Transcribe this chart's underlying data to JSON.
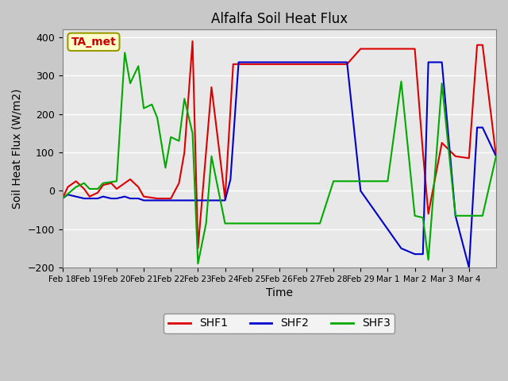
{
  "title": "Alfalfa Soil Heat Flux",
  "xlabel": "Time",
  "ylabel": "Soil Heat Flux (W/m2)",
  "ylim": [
    -200,
    420
  ],
  "annotation": "TA_met",
  "series": {
    "SHF1": {
      "color": "#dd0000",
      "x": [
        0,
        0.2,
        0.5,
        0.8,
        1.0,
        1.3,
        1.5,
        1.8,
        2.0,
        2.3,
        2.5,
        2.8,
        3.0,
        3.5,
        4.0,
        4.3,
        4.5,
        4.8,
        5.0,
        5.5,
        6.0,
        6.3,
        6.5,
        7.0,
        7.5,
        8.0,
        8.5,
        9.0,
        9.5,
        10.0,
        10.5,
        11.0,
        11.5,
        12.0,
        12.5,
        13.0,
        13.3,
        13.5,
        14.0,
        14.5,
        15.0,
        15.3,
        15.5,
        16.0
      ],
      "y": [
        -20,
        10,
        25,
        5,
        -15,
        -5,
        15,
        20,
        5,
        20,
        30,
        10,
        -15,
        -20,
        -20,
        20,
        100,
        390,
        -150,
        270,
        -20,
        330,
        330,
        330,
        330,
        330,
        330,
        330,
        330,
        330,
        330,
        370,
        370,
        370,
        370,
        370,
        100,
        -60,
        125,
        90,
        85,
        380,
        380,
        90
      ]
    },
    "SHF2": {
      "color": "#0000cc",
      "x": [
        0,
        0.2,
        0.5,
        0.8,
        1.0,
        1.3,
        1.5,
        1.8,
        2.0,
        2.3,
        2.5,
        2.8,
        3.0,
        3.5,
        4.0,
        4.5,
        5.0,
        5.5,
        6.0,
        6.2,
        6.5,
        7.0,
        7.5,
        8.0,
        8.5,
        9.0,
        9.5,
        10.0,
        10.5,
        11.0,
        11.5,
        12.0,
        12.5,
        13.0,
        13.3,
        13.5,
        14.0,
        14.5,
        15.0,
        15.3,
        15.5,
        16.0
      ],
      "y": [
        -20,
        -10,
        -15,
        -20,
        -20,
        -20,
        -15,
        -20,
        -20,
        -15,
        -20,
        -20,
        -25,
        -25,
        -25,
        -25,
        -25,
        -25,
        -25,
        30,
        335,
        335,
        335,
        335,
        335,
        335,
        335,
        335,
        335,
        0,
        -50,
        -100,
        -150,
        -165,
        -165,
        335,
        335,
        -65,
        -200,
        165,
        165,
        90
      ]
    },
    "SHF3": {
      "color": "#00aa00",
      "x": [
        0,
        0.5,
        0.8,
        1.0,
        1.3,
        1.5,
        2.0,
        2.3,
        2.5,
        2.8,
        3.0,
        3.3,
        3.5,
        3.8,
        4.0,
        4.3,
        4.5,
        4.8,
        5.0,
        5.3,
        5.5,
        6.0,
        6.5,
        7.0,
        7.5,
        8.0,
        8.5,
        9.0,
        9.5,
        10.0,
        10.5,
        11.0,
        11.5,
        12.0,
        12.5,
        13.0,
        13.3,
        13.5,
        14.0,
        14.5,
        15.0,
        15.3,
        15.5,
        16.0
      ],
      "y": [
        -20,
        10,
        20,
        5,
        5,
        20,
        25,
        360,
        280,
        325,
        215,
        225,
        190,
        60,
        140,
        130,
        240,
        150,
        -190,
        -85,
        90,
        -85,
        -85,
        -85,
        -85,
        -85,
        -85,
        -85,
        -85,
        25,
        25,
        25,
        25,
        25,
        285,
        -65,
        -70,
        -180,
        280,
        -65,
        -65,
        -65,
        -65,
        90
      ]
    }
  },
  "x_tick_labels": [
    "Feb 18",
    "Feb 19",
    "Feb 20",
    "Feb 21",
    "Feb 22",
    "Feb 23",
    "Feb 24",
    "Feb 25",
    "Feb 26",
    "Feb 27",
    "Feb 28",
    "Feb 29",
    "Mar 1",
    "Mar 2",
    "Mar 3",
    "Mar 4"
  ],
  "x_tick_positions": [
    0,
    1,
    2,
    3,
    4,
    5,
    6,
    7,
    8,
    9,
    10,
    11,
    12,
    13,
    14,
    15
  ]
}
